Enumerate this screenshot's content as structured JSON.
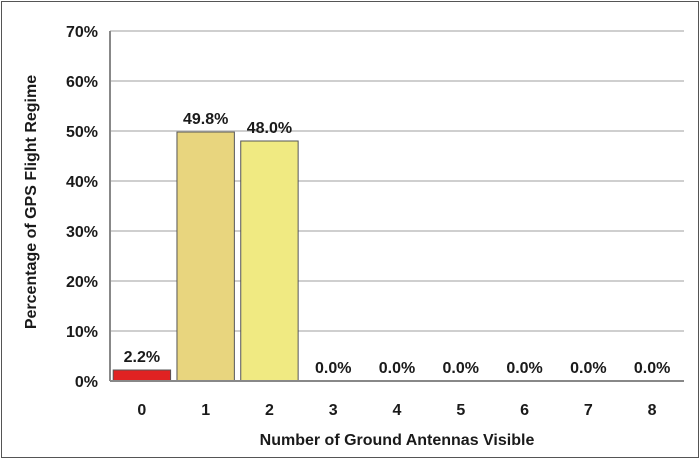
{
  "chart_data": {
    "type": "bar",
    "title": "",
    "xlabel": "Number of Ground Antennas Visible",
    "ylabel": "Percentage of GPS Flight Regime",
    "categories": [
      "0",
      "1",
      "2",
      "3",
      "4",
      "5",
      "6",
      "7",
      "8"
    ],
    "values": [
      2.2,
      49.8,
      48.0,
      0.0,
      0.0,
      0.0,
      0.0,
      0.0,
      0.0
    ],
    "data_labels": [
      "2.2%",
      "49.8%",
      "48.0%",
      "0.0%",
      "0.0%",
      "0.0%",
      "0.0%",
      "0.0%",
      "0.0%"
    ],
    "ylim": [
      0,
      70
    ],
    "yticks": [
      {
        "value": 0,
        "label": "0%"
      },
      {
        "value": 10,
        "label": "10%"
      },
      {
        "value": 20,
        "label": "20%"
      },
      {
        "value": 30,
        "label": "30%"
      },
      {
        "value": 40,
        "label": "40%"
      },
      {
        "value": 50,
        "label": "50%"
      },
      {
        "value": 60,
        "label": "60%"
      },
      {
        "value": 70,
        "label": "70%"
      }
    ],
    "grid": true,
    "legend": "none",
    "bar_colors": [
      "#e02222",
      "#e8d57e",
      "#f0ea82",
      "#f0ea82",
      "#f0ea82",
      "#f0ea82",
      "#f0ea82",
      "#f0ea82",
      "#f0ea82"
    ],
    "bar_border_color": "#555555",
    "grid_color": "#cfcfcf",
    "axis_color": "#888888"
  }
}
